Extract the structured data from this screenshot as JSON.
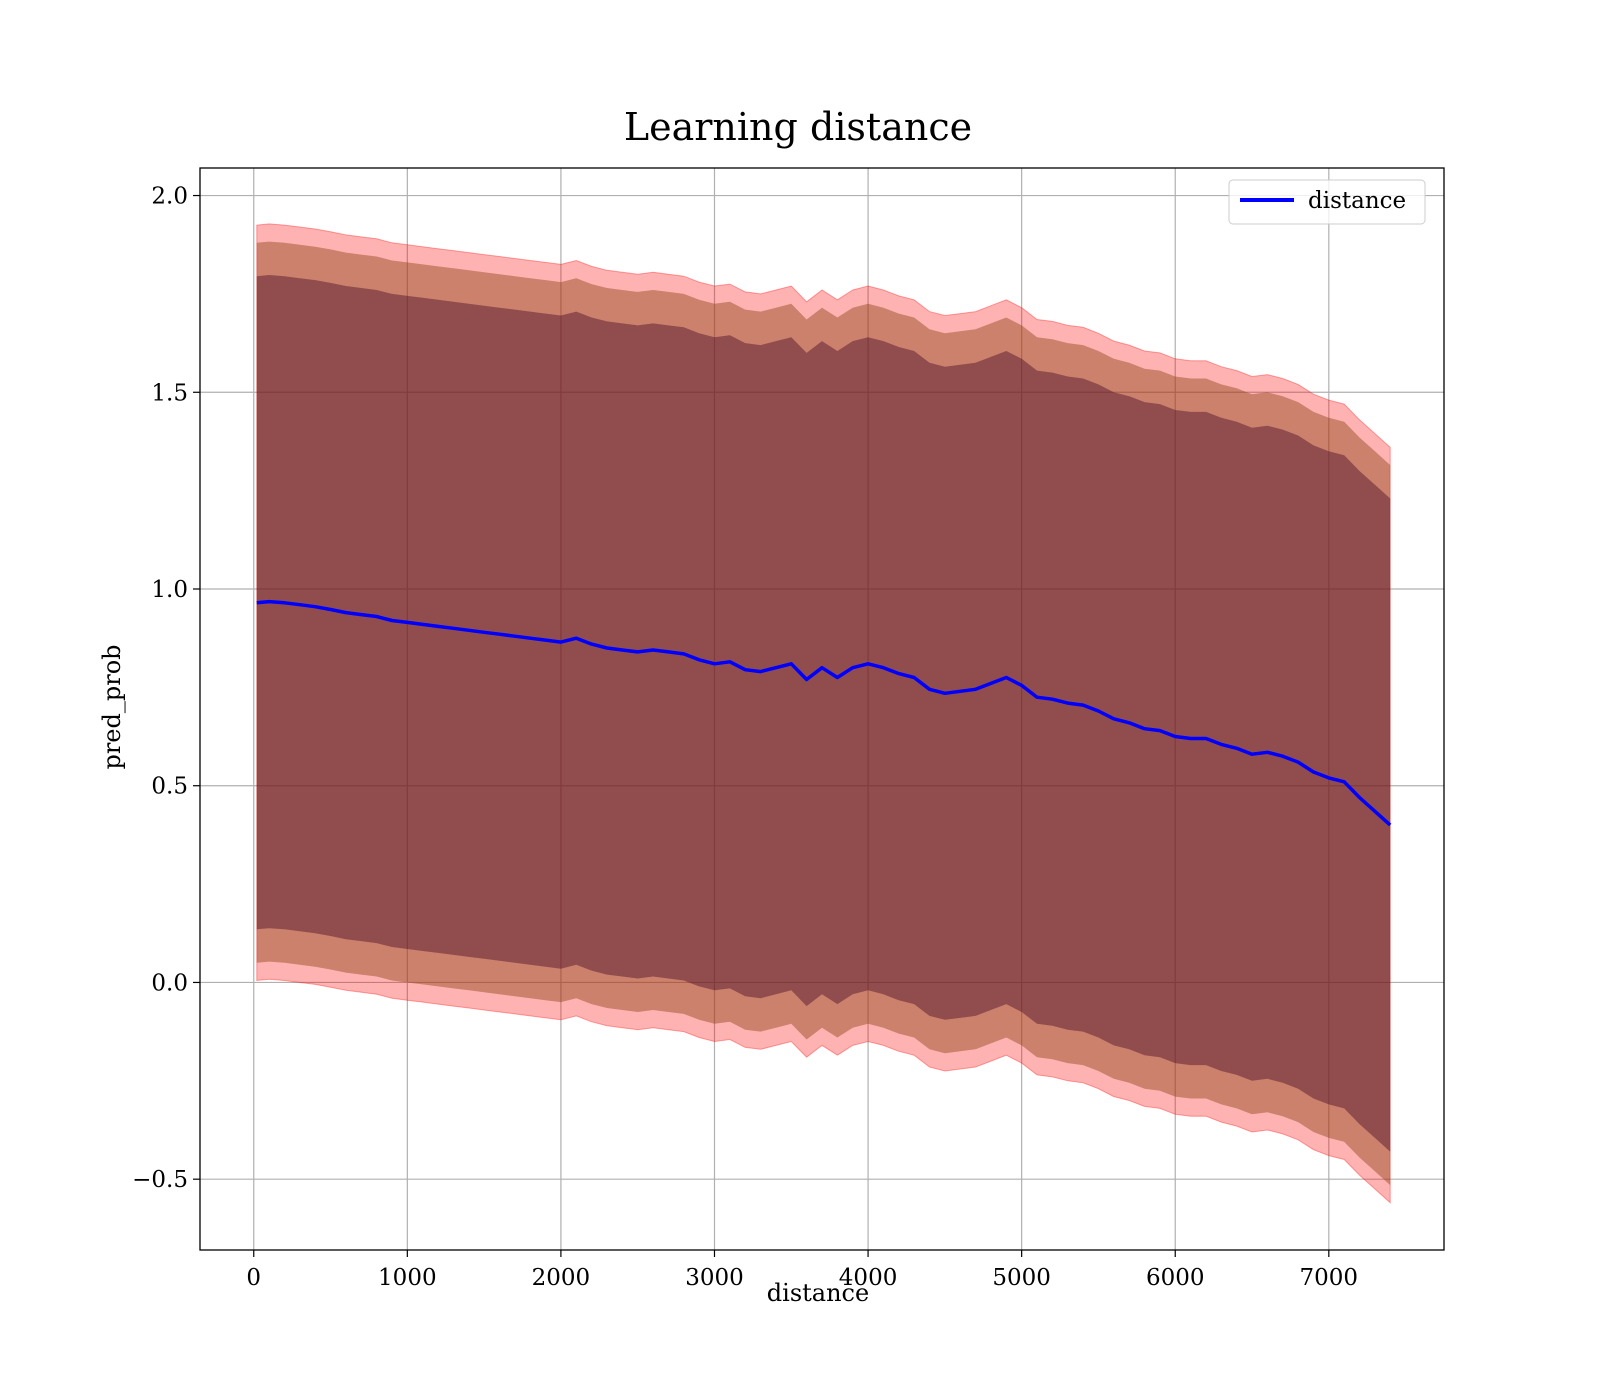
{
  "chart_data": {
    "type": "area",
    "title": "Learning distance",
    "xlabel": "distance",
    "ylabel": "pred_prob",
    "xlim": [
      -350,
      7750
    ],
    "ylim": [
      -0.68,
      2.07
    ],
    "xticks": [
      0,
      1000,
      2000,
      3000,
      4000,
      5000,
      6000,
      7000
    ],
    "xtick_labels": [
      "0",
      "1000",
      "2000",
      "3000",
      "4000",
      "5000",
      "6000",
      "7000"
    ],
    "yticks": [
      -0.5,
      0.0,
      0.5,
      1.0,
      1.5,
      2.0
    ],
    "ytick_labels": [
      "−0.5",
      "0.0",
      "0.5",
      "1.0",
      "1.5",
      "2.0"
    ],
    "grid": true,
    "legend": {
      "position": "top-right",
      "entries": [
        "distance"
      ]
    },
    "colors": {
      "line": "#0000ff",
      "band_outer": "#ff0000",
      "band_middle": "#8b4513",
      "band_inner": "#4b0e2a",
      "grid": "#b0b0b0"
    },
    "series": [
      {
        "name": "distance",
        "x": [
          20,
          100,
          200,
          300,
          400,
          500,
          600,
          700,
          800,
          900,
          1000,
          1100,
          1200,
          1300,
          1400,
          1500,
          1600,
          1700,
          1800,
          1900,
          2000,
          2100,
          2200,
          2300,
          2400,
          2500,
          2600,
          2700,
          2800,
          2900,
          3000,
          3100,
          3200,
          3300,
          3400,
          3500,
          3600,
          3700,
          3800,
          3900,
          4000,
          4100,
          4200,
          4300,
          4400,
          4500,
          4600,
          4700,
          4800,
          4900,
          5000,
          5100,
          5200,
          5300,
          5400,
          5500,
          5600,
          5700,
          5800,
          5900,
          6000,
          6100,
          6200,
          6300,
          6400,
          6500,
          6600,
          6700,
          6800,
          6900,
          7000,
          7100,
          7200,
          7300,
          7400
        ],
        "y": [
          0.965,
          0.968,
          0.965,
          0.96,
          0.955,
          0.948,
          0.94,
          0.935,
          0.93,
          0.92,
          0.915,
          0.91,
          0.905,
          0.9,
          0.895,
          0.89,
          0.885,
          0.88,
          0.875,
          0.87,
          0.865,
          0.875,
          0.86,
          0.85,
          0.845,
          0.84,
          0.845,
          0.84,
          0.835,
          0.82,
          0.81,
          0.815,
          0.795,
          0.79,
          0.8,
          0.81,
          0.77,
          0.8,
          0.775,
          0.8,
          0.81,
          0.8,
          0.785,
          0.775,
          0.745,
          0.735,
          0.74,
          0.745,
          0.76,
          0.775,
          0.755,
          0.725,
          0.72,
          0.71,
          0.705,
          0.69,
          0.67,
          0.66,
          0.645,
          0.64,
          0.625,
          0.62,
          0.62,
          0.605,
          0.595,
          0.58,
          0.585,
          0.575,
          0.56,
          0.535,
          0.52,
          0.51,
          0.47,
          0.435,
          0.4
        ],
        "std_inner": 0.83,
        "std_middle": 0.915,
        "std_outer": 0.96
      }
    ]
  }
}
